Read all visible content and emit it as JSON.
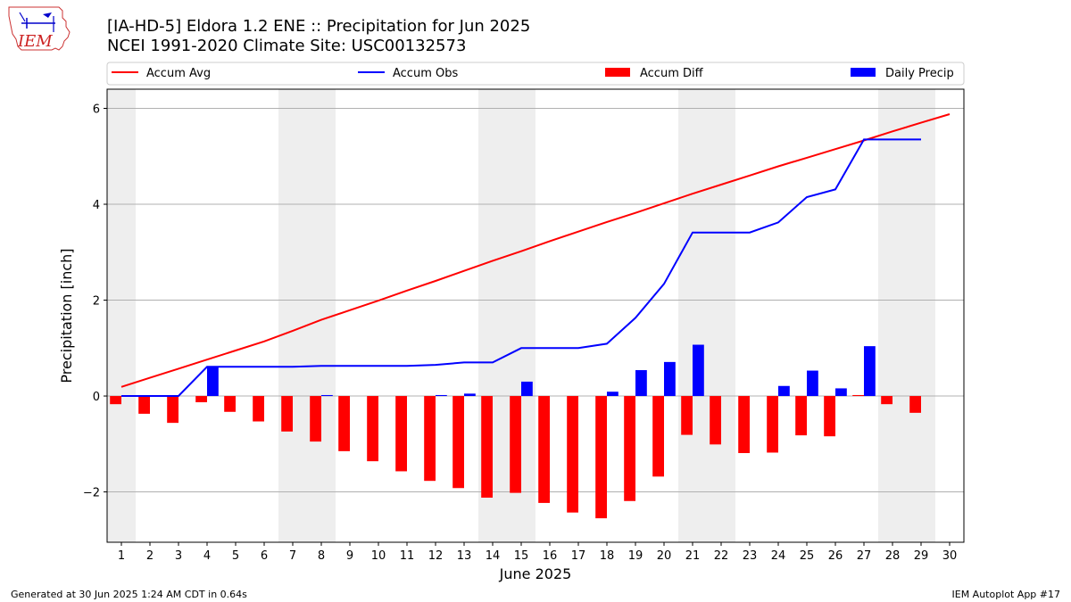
{
  "header": {
    "title_line1": "[IA-HD-5] Eldora 1.2 ENE :: Precipitation for Jun 2025",
    "title_line2": "NCEI 1991-2020 Climate Site: USC00132573",
    "logo_text": "IEM"
  },
  "footer": {
    "left": "Generated at 30 Jun 2025 1:24 AM CDT in 0.64s",
    "right": "IEM Autoplot App #17"
  },
  "colors": {
    "avg": "#ff0000",
    "obs": "#0000ff",
    "diff": "#ff0000",
    "daily": "#0000ff",
    "weekend_band": "#eeeeee",
    "grid": "#b0b0b0"
  },
  "chart_data": {
    "type": "bar",
    "xlabel": "June 2025",
    "ylabel": "Precipitation [inch]",
    "xlim": [
      0.5,
      30.5
    ],
    "ylim": [
      -3.05,
      6.4
    ],
    "yticks": [
      -2,
      0,
      2,
      4,
      6
    ],
    "ytick_labels": [
      "−2",
      "0",
      "2",
      "4",
      "6"
    ],
    "xticks": [
      1,
      2,
      3,
      4,
      5,
      6,
      7,
      8,
      9,
      10,
      11,
      12,
      13,
      14,
      15,
      16,
      17,
      18,
      19,
      20,
      21,
      22,
      23,
      24,
      25,
      26,
      27,
      28,
      29,
      30
    ],
    "grid": "horizontal",
    "legend_position": "top",
    "legend": [
      "Accum Avg",
      "Accum Obs",
      "Accum Diff",
      "Daily Precip"
    ],
    "weekend_bands": [
      [
        0.5,
        1.5
      ],
      [
        6.5,
        8.5
      ],
      [
        13.5,
        15.5
      ],
      [
        20.5,
        22.5
      ],
      [
        27.5,
        29.5
      ]
    ],
    "series": [
      {
        "name": "Accum Avg",
        "type": "line",
        "x": [
          1,
          2,
          3,
          4,
          5,
          6,
          7,
          8,
          9,
          10,
          11,
          12,
          13,
          14,
          15,
          16,
          17,
          18,
          19,
          20,
          21,
          22,
          23,
          24,
          25,
          26,
          27,
          28,
          29,
          30
        ],
        "values": [
          0.19,
          0.38,
          0.57,
          0.76,
          0.95,
          1.14,
          1.36,
          1.59,
          1.79,
          1.99,
          2.2,
          2.4,
          2.61,
          2.82,
          3.02,
          3.23,
          3.43,
          3.63,
          3.82,
          4.02,
          4.22,
          4.41,
          4.6,
          4.79,
          4.97,
          5.15,
          5.33,
          5.52,
          5.7,
          5.88
        ]
      },
      {
        "name": "Accum Obs",
        "type": "line",
        "x": [
          1,
          2,
          3,
          4,
          5,
          6,
          7,
          8,
          9,
          10,
          11,
          12,
          13,
          14,
          15,
          16,
          17,
          18,
          19,
          20,
          21,
          22,
          23,
          24,
          25,
          26,
          27,
          28,
          29
        ],
        "values": [
          0.0,
          0.0,
          0.0,
          0.61,
          0.61,
          0.61,
          0.61,
          0.63,
          0.63,
          0.63,
          0.63,
          0.65,
          0.7,
          0.7,
          1.0,
          1.0,
          1.0,
          1.09,
          1.63,
          2.34,
          3.41,
          3.41,
          3.41,
          3.62,
          4.15,
          4.31,
          5.35,
          5.35,
          5.35
        ]
      },
      {
        "name": "Accum Diff",
        "type": "bar",
        "x": [
          1,
          2,
          3,
          4,
          5,
          6,
          7,
          8,
          9,
          10,
          11,
          12,
          13,
          14,
          15,
          16,
          17,
          18,
          19,
          20,
          21,
          22,
          23,
          24,
          25,
          26,
          27,
          28,
          29
        ],
        "values": [
          -0.17,
          -0.37,
          -0.56,
          -0.13,
          -0.33,
          -0.53,
          -0.74,
          -0.95,
          -1.15,
          -1.36,
          -1.57,
          -1.77,
          -1.92,
          -2.12,
          -2.02,
          -2.23,
          -2.43,
          -2.55,
          -2.19,
          -1.68,
          -0.81,
          -1.01,
          -1.19,
          -1.18,
          -0.82,
          -0.84,
          0.02,
          -0.17,
          -0.35
        ]
      },
      {
        "name": "Daily Precip",
        "type": "bar",
        "x": [
          1,
          2,
          3,
          4,
          5,
          6,
          7,
          8,
          9,
          10,
          11,
          12,
          13,
          14,
          15,
          16,
          17,
          18,
          19,
          20,
          21,
          22,
          23,
          24,
          25,
          26,
          27,
          28,
          29
        ],
        "values": [
          0.0,
          0.0,
          0.0,
          0.61,
          0.0,
          0.0,
          0.0,
          0.02,
          0.0,
          0.0,
          0.0,
          0.02,
          0.05,
          0.0,
          0.3,
          0.0,
          0.0,
          0.09,
          0.54,
          0.71,
          1.07,
          0.0,
          0.0,
          0.21,
          0.53,
          0.16,
          1.04,
          0.0,
          0.0
        ]
      }
    ]
  }
}
